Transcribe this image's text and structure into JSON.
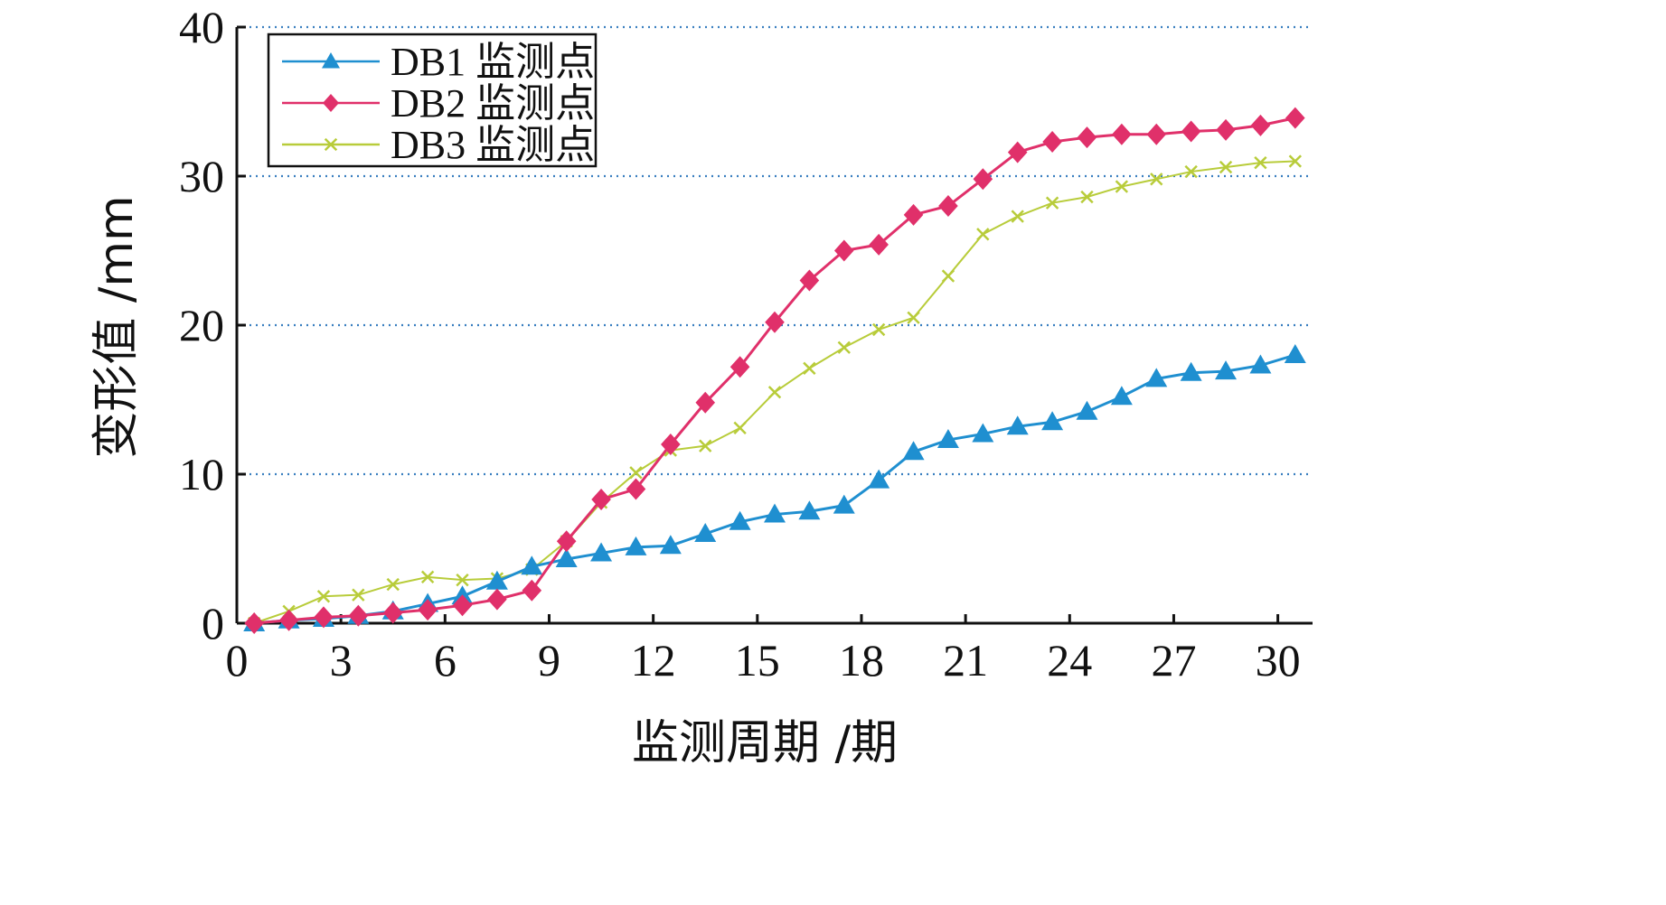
{
  "chart_data": {
    "type": "line",
    "title": "",
    "xlabel": "监测周期 /期",
    "ylabel": "变形值 /mm",
    "xlim": [
      0,
      31
    ],
    "ylim": [
      0,
      40
    ],
    "xticks": [
      0,
      3,
      6,
      9,
      12,
      15,
      18,
      21,
      24,
      27,
      30
    ],
    "yticks": [
      0,
      10,
      20,
      30,
      40
    ],
    "grid": "horizontal-dotted",
    "legend_position": "top-left",
    "x": [
      0.5,
      1.5,
      2.5,
      3.5,
      4.5,
      5.5,
      6.5,
      7.5,
      8.5,
      9.5,
      10.5,
      11.5,
      12.5,
      13.5,
      14.5,
      15.5,
      16.5,
      17.5,
      18.5,
      19.5,
      20.5,
      21.5,
      22.5,
      23.5,
      24.5,
      25.5,
      26.5,
      27.5,
      28.5,
      29.5,
      30.5
    ],
    "series": [
      {
        "name": "DB1 监测点",
        "color": "#1f8fd0",
        "marker": "triangle",
        "values": [
          0,
          0.2,
          0.3,
          0.5,
          0.8,
          1.3,
          1.8,
          2.8,
          3.8,
          4.3,
          4.7,
          5.1,
          5.2,
          6.0,
          6.8,
          7.3,
          7.5,
          7.9,
          9.6,
          11.5,
          12.3,
          12.7,
          13.2,
          13.5,
          14.2,
          15.2,
          16.4,
          16.8,
          16.9,
          17.3,
          18.0
        ]
      },
      {
        "name": "DB2 监测点",
        "color": "#e0306a",
        "marker": "diamond",
        "values": [
          0,
          0.2,
          0.4,
          0.5,
          0.7,
          0.9,
          1.2,
          1.6,
          2.2,
          5.5,
          8.3,
          9.0,
          12.0,
          14.8,
          17.2,
          20.2,
          23.0,
          25.0,
          25.4,
          27.4,
          28.0,
          29.8,
          31.6,
          32.3,
          32.6,
          32.8,
          32.8,
          33.0,
          33.1,
          33.4,
          33.9
        ]
      },
      {
        "name": "DB3 监测点",
        "color": "#b8cc3a",
        "marker": "x",
        "values": [
          0,
          0.8,
          1.8,
          1.9,
          2.6,
          3.1,
          2.9,
          3.0,
          3.6,
          5.5,
          8.1,
          10.1,
          11.6,
          11.9,
          13.1,
          15.5,
          17.1,
          18.5,
          19.7,
          20.5,
          23.3,
          26.1,
          27.3,
          28.2,
          28.6,
          29.3,
          29.8,
          30.3,
          30.6,
          30.9,
          31.0
        ]
      }
    ]
  }
}
